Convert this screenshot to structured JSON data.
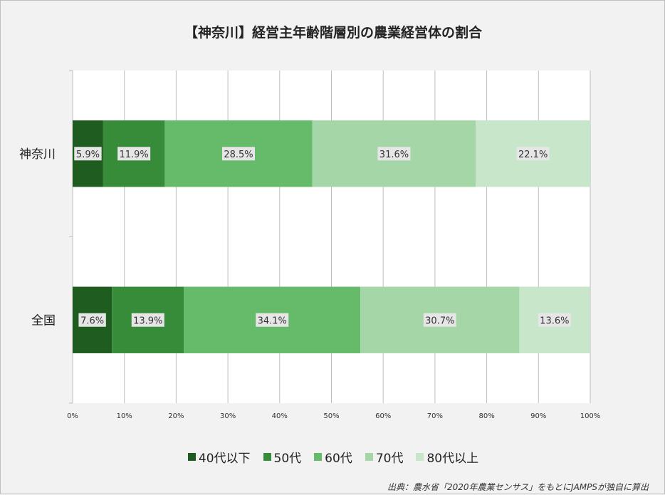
{
  "chart_data": {
    "type": "bar",
    "orientation": "horizontal",
    "stacked": true,
    "title": "【神奈川】経営主年齢階層別の農業経営体の割合",
    "categories": [
      "神奈川",
      "全国"
    ],
    "series": [
      {
        "name": "40代以下",
        "color": "#1e5c20",
        "values": [
          5.9,
          7.6
        ]
      },
      {
        "name": "50代",
        "color": "#378c3a",
        "values": [
          11.9,
          13.9
        ]
      },
      {
        "name": "60代",
        "color": "#66bb6a",
        "values": [
          28.5,
          34.1
        ]
      },
      {
        "name": "70代",
        "color": "#a5d6a7",
        "values": [
          31.6,
          30.7
        ]
      },
      {
        "name": "80代以上",
        "color": "#c8e6c9",
        "values": [
          22.1,
          13.6
        ]
      }
    ],
    "xlim": [
      0,
      100
    ],
    "xticks": [
      "0%",
      "10%",
      "20%",
      "30%",
      "40%",
      "50%",
      "60%",
      "70%",
      "80%",
      "90%",
      "100%"
    ],
    "grid": true,
    "legend": "bottom",
    "value_suffix": "%"
  },
  "source_note": "出典：農水省「2020年農業センサス」をもとにJAMPSが独自に算出"
}
